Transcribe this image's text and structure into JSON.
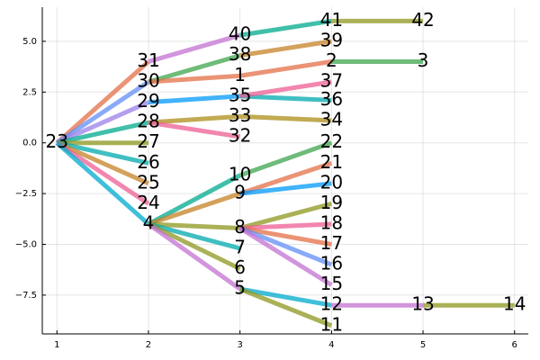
{
  "chart_data": {
    "type": "tree",
    "xlim": [
      0.84,
      6.15
    ],
    "ylim": [
      -9.41,
      6.68
    ],
    "xticks": [
      1,
      2,
      3,
      4,
      5,
      6
    ],
    "yticks": [
      {
        "value": -7.5,
        "label": "−7.5"
      },
      {
        "value": -5,
        "label": "−5.0"
      },
      {
        "value": -2.5,
        "label": "−2.5"
      },
      {
        "value": 0,
        "label": "0.0"
      },
      {
        "value": 2.5,
        "label": "2.5"
      },
      {
        "value": 5,
        "label": "5.0"
      }
    ],
    "grid": true,
    "series": [
      {
        "color": "#E36F47",
        "x": [
          1,
          2
        ],
        "values": [
          0,
          4
        ]
      },
      {
        "color": "#618DF6",
        "x": [
          1,
          2
        ],
        "values": [
          0,
          3
        ]
      },
      {
        "color": "#9B7FE9",
        "x": [
          1,
          2
        ],
        "values": [
          0,
          2
        ]
      },
      {
        "color": "#00A98D",
        "x": [
          1,
          2
        ],
        "values": [
          0,
          1
        ]
      },
      {
        "color": "#8E971D",
        "x": [
          1,
          2
        ],
        "values": [
          0,
          0
        ]
      },
      {
        "color": "#00A9AD",
        "x": [
          1,
          2
        ],
        "values": [
          0,
          -1
        ]
      },
      {
        "color": "#C68225",
        "x": [
          1,
          2
        ],
        "values": [
          0,
          -2
        ]
      },
      {
        "color": "#ED5E93",
        "x": [
          1,
          2
        ],
        "values": [
          0,
          -3
        ]
      },
      {
        "color": "#00A9CD",
        "x": [
          1,
          2
        ],
        "values": [
          0,
          -4
        ]
      },
      {
        "color": "#C371D2",
        "x": [
          2,
          3
        ],
        "values": [
          4,
          5.3
        ]
      },
      {
        "color": "#00A98D",
        "x": [
          3,
          4
        ],
        "values": [
          5.3,
          6
        ]
      },
      {
        "color": "#8E971D",
        "x": [
          4,
          5
        ],
        "values": [
          6,
          6
        ]
      },
      {
        "color": "#3EA44E",
        "x": [
          2,
          3
        ],
        "values": [
          3,
          4.3
        ]
      },
      {
        "color": "#C68225",
        "x": [
          3,
          4
        ],
        "values": [
          4.3,
          5
        ]
      },
      {
        "color": "#E36F47",
        "x": [
          2,
          3
        ],
        "values": [
          3,
          3.3
        ]
      },
      {
        "color": "#E36F47",
        "x": [
          3,
          4
        ],
        "values": [
          3.3,
          4
        ]
      },
      {
        "color": "#3EA44E",
        "x": [
          4,
          5
        ],
        "values": [
          4,
          4
        ]
      },
      {
        "color": "#009AFA",
        "x": [
          2,
          3
        ],
        "values": [
          2,
          2.3
        ]
      },
      {
        "color": "#00A9AD",
        "x": [
          3,
          4
        ],
        "values": [
          2.3,
          2.1
        ]
      },
      {
        "color": "#ED5E93",
        "x": [
          3,
          4
        ],
        "values": [
          2.3,
          3
        ]
      },
      {
        "color": "#AC8E18",
        "x": [
          2,
          3
        ],
        "values": [
          1,
          1.3
        ]
      },
      {
        "color": "#AC8E18",
        "x": [
          3,
          4
        ],
        "values": [
          1.3,
          1.1
        ]
      },
      {
        "color": "#ED5E93",
        "x": [
          2,
          3
        ],
        "values": [
          1,
          0.3
        ]
      },
      {
        "color": "#00A98D",
        "x": [
          2,
          3
        ],
        "values": [
          -4,
          -1.6
        ]
      },
      {
        "color": "#3EA44E",
        "x": [
          3,
          4
        ],
        "values": [
          -1.6,
          0
        ]
      },
      {
        "color": "#C68225",
        "x": [
          2,
          3
        ],
        "values": [
          -4,
          -2.5
        ]
      },
      {
        "color": "#E36F47",
        "x": [
          3,
          4
        ],
        "values": [
          -2.5,
          -1
        ]
      },
      {
        "color": "#009AFA",
        "x": [
          3,
          4
        ],
        "values": [
          -2.5,
          -2
        ]
      },
      {
        "color": "#8E971D",
        "x": [
          2,
          3
        ],
        "values": [
          -4,
          -4.2
        ]
      },
      {
        "color": "#8E971D",
        "x": [
          3,
          4
        ],
        "values": [
          -4.2,
          -3
        ]
      },
      {
        "color": "#ED5E93",
        "x": [
          3,
          4
        ],
        "values": [
          -4.2,
          -4
        ]
      },
      {
        "color": "#E36F47",
        "x": [
          3,
          4
        ],
        "values": [
          -4.2,
          -5
        ]
      },
      {
        "color": "#618DF6",
        "x": [
          3,
          4
        ],
        "values": [
          -4.2,
          -6
        ]
      },
      {
        "color": "#C371D2",
        "x": [
          3,
          4
        ],
        "values": [
          -4.2,
          -7
        ]
      },
      {
        "color": "#00A9AD",
        "x": [
          2,
          3
        ],
        "values": [
          -4,
          -5.2
        ]
      },
      {
        "color": "#8E971D",
        "x": [
          2,
          3
        ],
        "values": [
          -4,
          -6.2
        ]
      },
      {
        "color": "#C371D2",
        "x": [
          2,
          3
        ],
        "values": [
          -4,
          -7.2
        ]
      },
      {
        "color": "#00A9CD",
        "x": [
          3,
          4
        ],
        "values": [
          -7.2,
          -8
        ]
      },
      {
        "color": "#8E971D",
        "x": [
          3,
          4
        ],
        "values": [
          -7.2,
          -9
        ]
      },
      {
        "color": "#C371D2",
        "x": [
          4,
          5
        ],
        "values": [
          -8,
          -8
        ]
      },
      {
        "color": "#8E971D",
        "x": [
          5,
          6
        ],
        "values": [
          -8,
          -8
        ]
      }
    ],
    "annotations": [
      {
        "text": "1",
        "x": 3,
        "y": 3.3
      },
      {
        "text": "2",
        "x": 4,
        "y": 4
      },
      {
        "text": "3",
        "x": 5,
        "y": 4
      },
      {
        "text": "4",
        "x": 2,
        "y": -4
      },
      {
        "text": "5",
        "x": 3,
        "y": -7.2
      },
      {
        "text": "6",
        "x": 3,
        "y": -6.2
      },
      {
        "text": "7",
        "x": 3,
        "y": -5.2
      },
      {
        "text": "8",
        "x": 3,
        "y": -4.2
      },
      {
        "text": "9",
        "x": 3,
        "y": -2.5
      },
      {
        "text": "10",
        "x": 3,
        "y": -1.6
      },
      {
        "text": "11",
        "x": 4,
        "y": -9
      },
      {
        "text": "12",
        "x": 4,
        "y": -8
      },
      {
        "text": "13",
        "x": 5,
        "y": -8
      },
      {
        "text": "14",
        "x": 6,
        "y": -8
      },
      {
        "text": "15",
        "x": 4,
        "y": -7
      },
      {
        "text": "16",
        "x": 4,
        "y": -6
      },
      {
        "text": "17",
        "x": 4,
        "y": -5
      },
      {
        "text": "18",
        "x": 4,
        "y": -4
      },
      {
        "text": "19",
        "x": 4,
        "y": -3
      },
      {
        "text": "20",
        "x": 4,
        "y": -2
      },
      {
        "text": "21",
        "x": 4,
        "y": -1
      },
      {
        "text": "22",
        "x": 4,
        "y": 0
      },
      {
        "text": "23",
        "x": 1,
        "y": 0
      },
      {
        "text": "24",
        "x": 2,
        "y": -3
      },
      {
        "text": "25",
        "x": 2,
        "y": -2
      },
      {
        "text": "26",
        "x": 2,
        "y": -1
      },
      {
        "text": "27",
        "x": 2,
        "y": 0
      },
      {
        "text": "28",
        "x": 2,
        "y": 1
      },
      {
        "text": "29",
        "x": 2,
        "y": 2
      },
      {
        "text": "30",
        "x": 2,
        "y": 3
      },
      {
        "text": "31",
        "x": 2,
        "y": 4
      },
      {
        "text": "32",
        "x": 3,
        "y": 0.3
      },
      {
        "text": "33",
        "x": 3,
        "y": 1.3
      },
      {
        "text": "34",
        "x": 4,
        "y": 1.1
      },
      {
        "text": "35",
        "x": 3,
        "y": 2.3
      },
      {
        "text": "36",
        "x": 4,
        "y": 2.1
      },
      {
        "text": "37",
        "x": 4,
        "y": 3
      },
      {
        "text": "38",
        "x": 3,
        "y": 4.3
      },
      {
        "text": "39",
        "x": 4,
        "y": 5
      },
      {
        "text": "40",
        "x": 3,
        "y": 5.3
      },
      {
        "text": "41",
        "x": 4,
        "y": 6
      },
      {
        "text": "42",
        "x": 5,
        "y": 6
      }
    ]
  }
}
